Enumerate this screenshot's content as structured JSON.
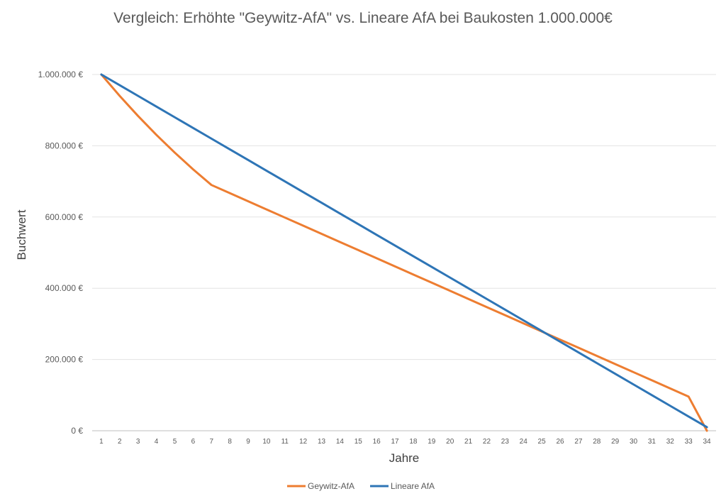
{
  "chart_data": {
    "type": "line",
    "title": "Vergleich: Erhöhte \"Geywitz-AfA\" vs. Lineare AfA bei Baukosten 1.000.000€",
    "xlabel": "Jahre",
    "ylabel": "Buchwert",
    "x": [
      1,
      2,
      3,
      4,
      5,
      6,
      7,
      8,
      9,
      10,
      11,
      12,
      13,
      14,
      15,
      16,
      17,
      18,
      19,
      20,
      21,
      22,
      23,
      24,
      25,
      26,
      27,
      28,
      29,
      30,
      31,
      32,
      33,
      34
    ],
    "ylim": [
      0,
      1000000
    ],
    "yticks": [
      0,
      200000,
      400000,
      600000,
      800000,
      1000000
    ],
    "ytick_labels": [
      "0 €",
      "200.000 €",
      "400.000 €",
      "600.000 €",
      "800.000 €",
      "1.000.000 €"
    ],
    "grid": true,
    "legend_position": "bottom",
    "series": [
      {
        "name": "Geywitz-AfA",
        "color": "#ED7D31",
        "values": [
          1000000,
          940000,
          883600,
          830584,
          780749,
          733904,
          689870,
          667026,
          644182,
          621338,
          598494,
          575650,
          552806,
          529962,
          507118,
          484274,
          461430,
          438586,
          415742,
          392898,
          370054,
          347210,
          324366,
          301522,
          278678,
          255834,
          232990,
          210146,
          187302,
          164458,
          141614,
          118770,
          95926,
          0
        ]
      },
      {
        "name": "Lineare AfA",
        "color": "#2E75B6",
        "values": [
          1000000,
          970000,
          940000,
          910000,
          880000,
          850000,
          820000,
          790000,
          760000,
          730000,
          700000,
          670000,
          640000,
          610000,
          580000,
          550000,
          520000,
          490000,
          460000,
          430000,
          400000,
          370000,
          340000,
          310000,
          280000,
          250000,
          220000,
          190000,
          160000,
          130000,
          100000,
          70000,
          40000,
          10000
        ]
      }
    ]
  }
}
